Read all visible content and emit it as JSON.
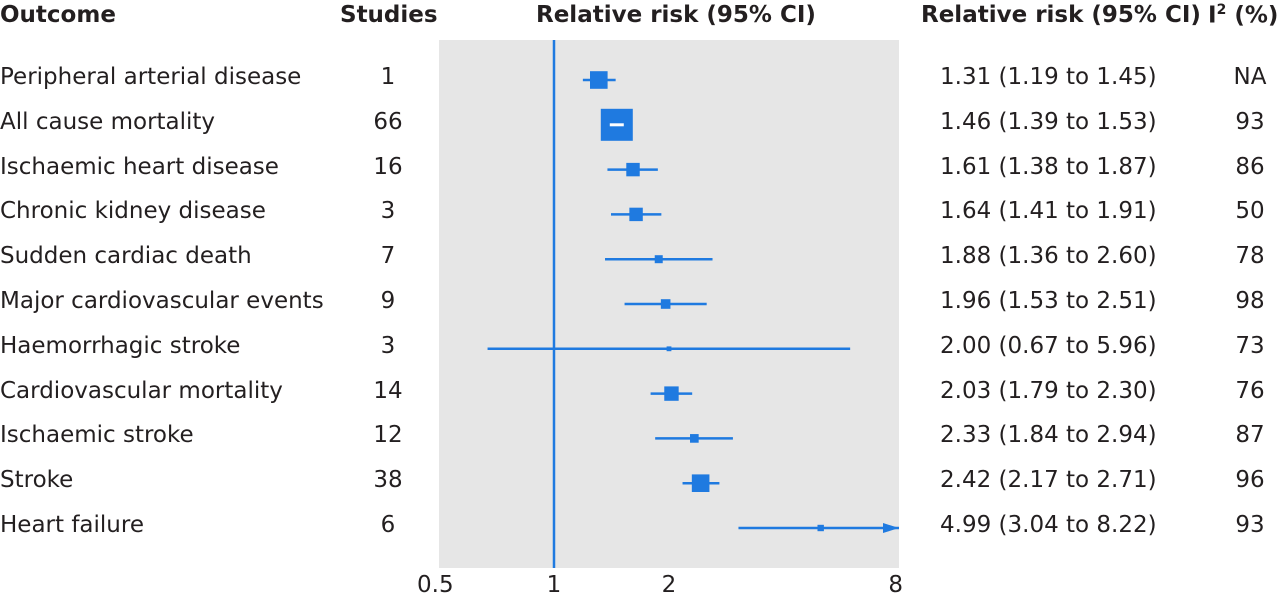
{
  "headers": {
    "outcome": "Outcome",
    "studies": "Studies",
    "plot": "Relative risk (95% CI)",
    "ci": "Relative risk (95% CI)",
    "i2": "I",
    "i2_sup": "2",
    "i2_suffix": " (%)"
  },
  "colors": {
    "marker": "#1f7ae0",
    "panel": "#e6e6e6",
    "reference": "#1f7ae0"
  },
  "chart_data": {
    "type": "forest",
    "xscale": "log2",
    "xlim": [
      0.5,
      8
    ],
    "xticks": [
      0.5,
      1,
      2,
      8
    ],
    "xtick_labels": [
      "0.5",
      "1",
      "2",
      "8"
    ],
    "reference_line": 1,
    "rows": [
      {
        "outcome": "Peripheral arterial disease",
        "studies": "1",
        "rr": 1.31,
        "lo": 1.19,
        "hi": 1.45,
        "ci_text": "1.31 (1.19 to 1.45)",
        "i2": "NA",
        "weight": 0.55
      },
      {
        "outcome": "All cause mortality",
        "studies": "66",
        "rr": 1.46,
        "lo": 1.39,
        "hi": 1.53,
        "ci_text": "1.46 (1.39 to 1.53)",
        "i2": "93",
        "weight": 1.0
      },
      {
        "outcome": "Ischaemic heart disease",
        "studies": "16",
        "rr": 1.61,
        "lo": 1.38,
        "hi": 1.87,
        "ci_text": "1.61 (1.38 to 1.87)",
        "i2": "86",
        "weight": 0.42
      },
      {
        "outcome": "Chronic kidney disease",
        "studies": "3",
        "rr": 1.64,
        "lo": 1.41,
        "hi": 1.91,
        "ci_text": "1.64 (1.41 to 1.91)",
        "i2": "50",
        "weight": 0.42
      },
      {
        "outcome": "Sudden cardiac death",
        "studies": "7",
        "rr": 1.88,
        "lo": 1.36,
        "hi": 2.6,
        "ci_text": "1.88 (1.36 to 2.60)",
        "i2": "78",
        "weight": 0.25
      },
      {
        "outcome": "Major cardiovascular events",
        "studies": "9",
        "rr": 1.96,
        "lo": 1.53,
        "hi": 2.51,
        "ci_text": "1.96 (1.53 to 2.51)",
        "i2": "98",
        "weight": 0.3
      },
      {
        "outcome": "Haemorrhagic stroke",
        "studies": "3",
        "rr": 2.0,
        "lo": 0.67,
        "hi": 5.96,
        "ci_text": "2.00 (0.67 to 5.96)",
        "i2": "73",
        "weight": 0.15
      },
      {
        "outcome": "Cardiovascular mortality",
        "studies": "14",
        "rr": 2.03,
        "lo": 1.79,
        "hi": 2.3,
        "ci_text": "2.03 (1.79 to 2.30)",
        "i2": "76",
        "weight": 0.45
      },
      {
        "outcome": "Ischaemic stroke",
        "studies": "12",
        "rr": 2.33,
        "lo": 1.84,
        "hi": 2.94,
        "ci_text": "2.33 (1.84 to 2.94)",
        "i2": "87",
        "weight": 0.27
      },
      {
        "outcome": "Stroke",
        "studies": "38",
        "rr": 2.42,
        "lo": 2.17,
        "hi": 2.71,
        "ci_text": "2.42 (2.17 to 2.71)",
        "i2": "96",
        "weight": 0.55
      },
      {
        "outcome": "Heart failure",
        "studies": "6",
        "rr": 4.99,
        "lo": 3.04,
        "hi": 8.22,
        "ci_text": "4.99 (3.04 to 8.22)",
        "i2": "93",
        "weight": 0.2
      }
    ]
  }
}
